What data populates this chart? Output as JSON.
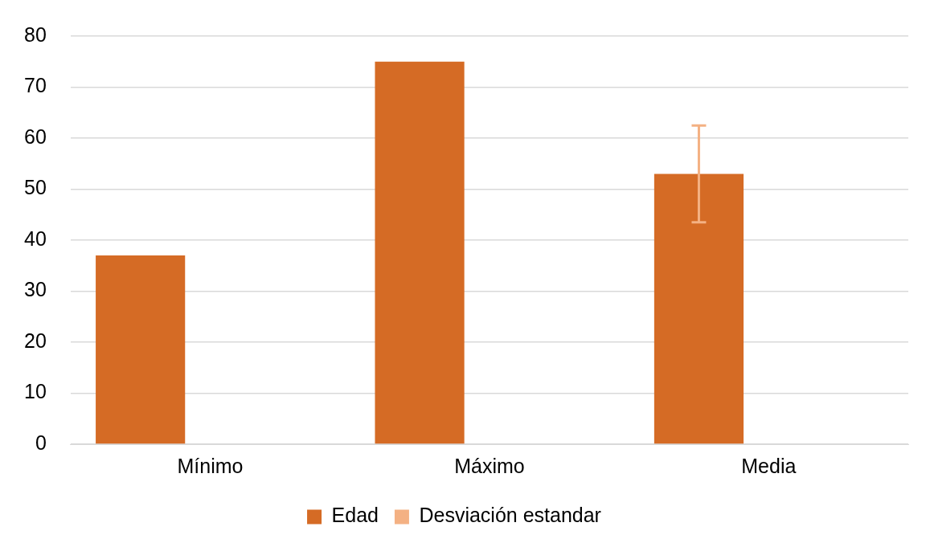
{
  "chart_data": {
    "type": "bar",
    "categories": [
      "Mínimo",
      "Máximo",
      "Media"
    ],
    "series": [
      {
        "name": "Edad",
        "color": "#d56b25",
        "values": [
          37,
          75,
          53
        ],
        "errors": [
          null,
          null,
          9.5
        ]
      },
      {
        "name": "Desviación estandar",
        "color": "#f4b183",
        "values": [
          null,
          null,
          null
        ]
      }
    ],
    "ylim": [
      0,
      80
    ],
    "yticks": [
      0,
      10,
      20,
      30,
      40,
      50,
      60,
      70,
      80
    ],
    "grid": "y",
    "legend": "bottom"
  }
}
